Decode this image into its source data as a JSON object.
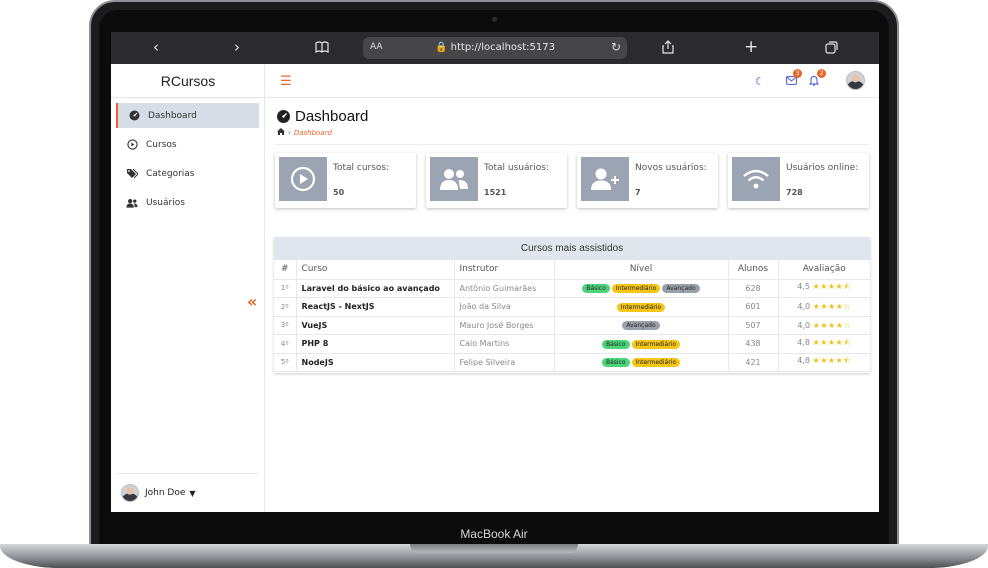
{
  "device": {
    "label": "MacBook Air"
  },
  "browser": {
    "aa": "AA",
    "url": "http://localhost:5173"
  },
  "app": {
    "name": "RCursos"
  },
  "sidebar": {
    "items": [
      {
        "label": "Dashboard",
        "icon": "dashboard-icon",
        "active": true
      },
      {
        "label": "Cursos",
        "icon": "play-circle-icon",
        "active": false
      },
      {
        "label": "Categorias",
        "icon": "tags-icon",
        "active": false
      },
      {
        "label": "Usuários",
        "icon": "users-icon",
        "active": false
      }
    ],
    "collapse_icon": "«",
    "user": {
      "name": "John Doe"
    }
  },
  "topbar": {
    "mail_count": "3",
    "bell_count": "2"
  },
  "page": {
    "title": "Dashboard",
    "breadcrumb": "Dashboard"
  },
  "cards": [
    {
      "label": "Total cursos:",
      "value": "50",
      "icon": "play-circle-icon"
    },
    {
      "label": "Total usuários:",
      "value": "1521",
      "icon": "users-icon"
    },
    {
      "label": "Novos usuários:",
      "value": "7",
      "icon": "user-plus-icon"
    },
    {
      "label": "Usuários online:",
      "value": "728",
      "icon": "wifi-icon"
    }
  ],
  "table": {
    "title": "Cursos mais assistidos",
    "headers": [
      "#",
      "Curso",
      "Instrutor",
      "Nível",
      "Alunos",
      "Avaliação"
    ],
    "level_colors": {
      "Básico": "#4cd47a",
      "Intermediário": "#f5c518",
      "Avançado": "#9aa0aa"
    },
    "rows": [
      {
        "num": "1º",
        "course": "Laravel do básico ao avançado",
        "instructor": "Antônio Guimarães",
        "levels": [
          "Básico",
          "Intermediário",
          "Avançado"
        ],
        "students": "628",
        "rating": "4,5",
        "stars": "★★★★⯪"
      },
      {
        "num": "2º",
        "course": "ReactJS - NextJS",
        "instructor": "João da Silva",
        "levels": [
          "Intermediário"
        ],
        "students": "601",
        "rating": "4,0",
        "stars": "★★★★☆"
      },
      {
        "num": "3º",
        "course": "VueJS",
        "instructor": "Mauro José Borges",
        "levels": [
          "Avançado"
        ],
        "students": "507",
        "rating": "4,0",
        "stars": "★★★★☆"
      },
      {
        "num": "4º",
        "course": "PHP 8",
        "instructor": "Caio Martins",
        "levels": [
          "Básico",
          "Intermediário"
        ],
        "students": "438",
        "rating": "4,8",
        "stars": "★★★★⯪"
      },
      {
        "num": "5º",
        "course": "NodeJS",
        "instructor": "Felipe Silveira",
        "levels": [
          "Básico",
          "Intermediário"
        ],
        "students": "421",
        "rating": "4,8",
        "stars": "★★★★⯪"
      }
    ]
  },
  "colors": {
    "accent": "#e8652a",
    "card_icon_bg": "#9aa4b2",
    "active_nav_bg": "#d7dde6"
  }
}
